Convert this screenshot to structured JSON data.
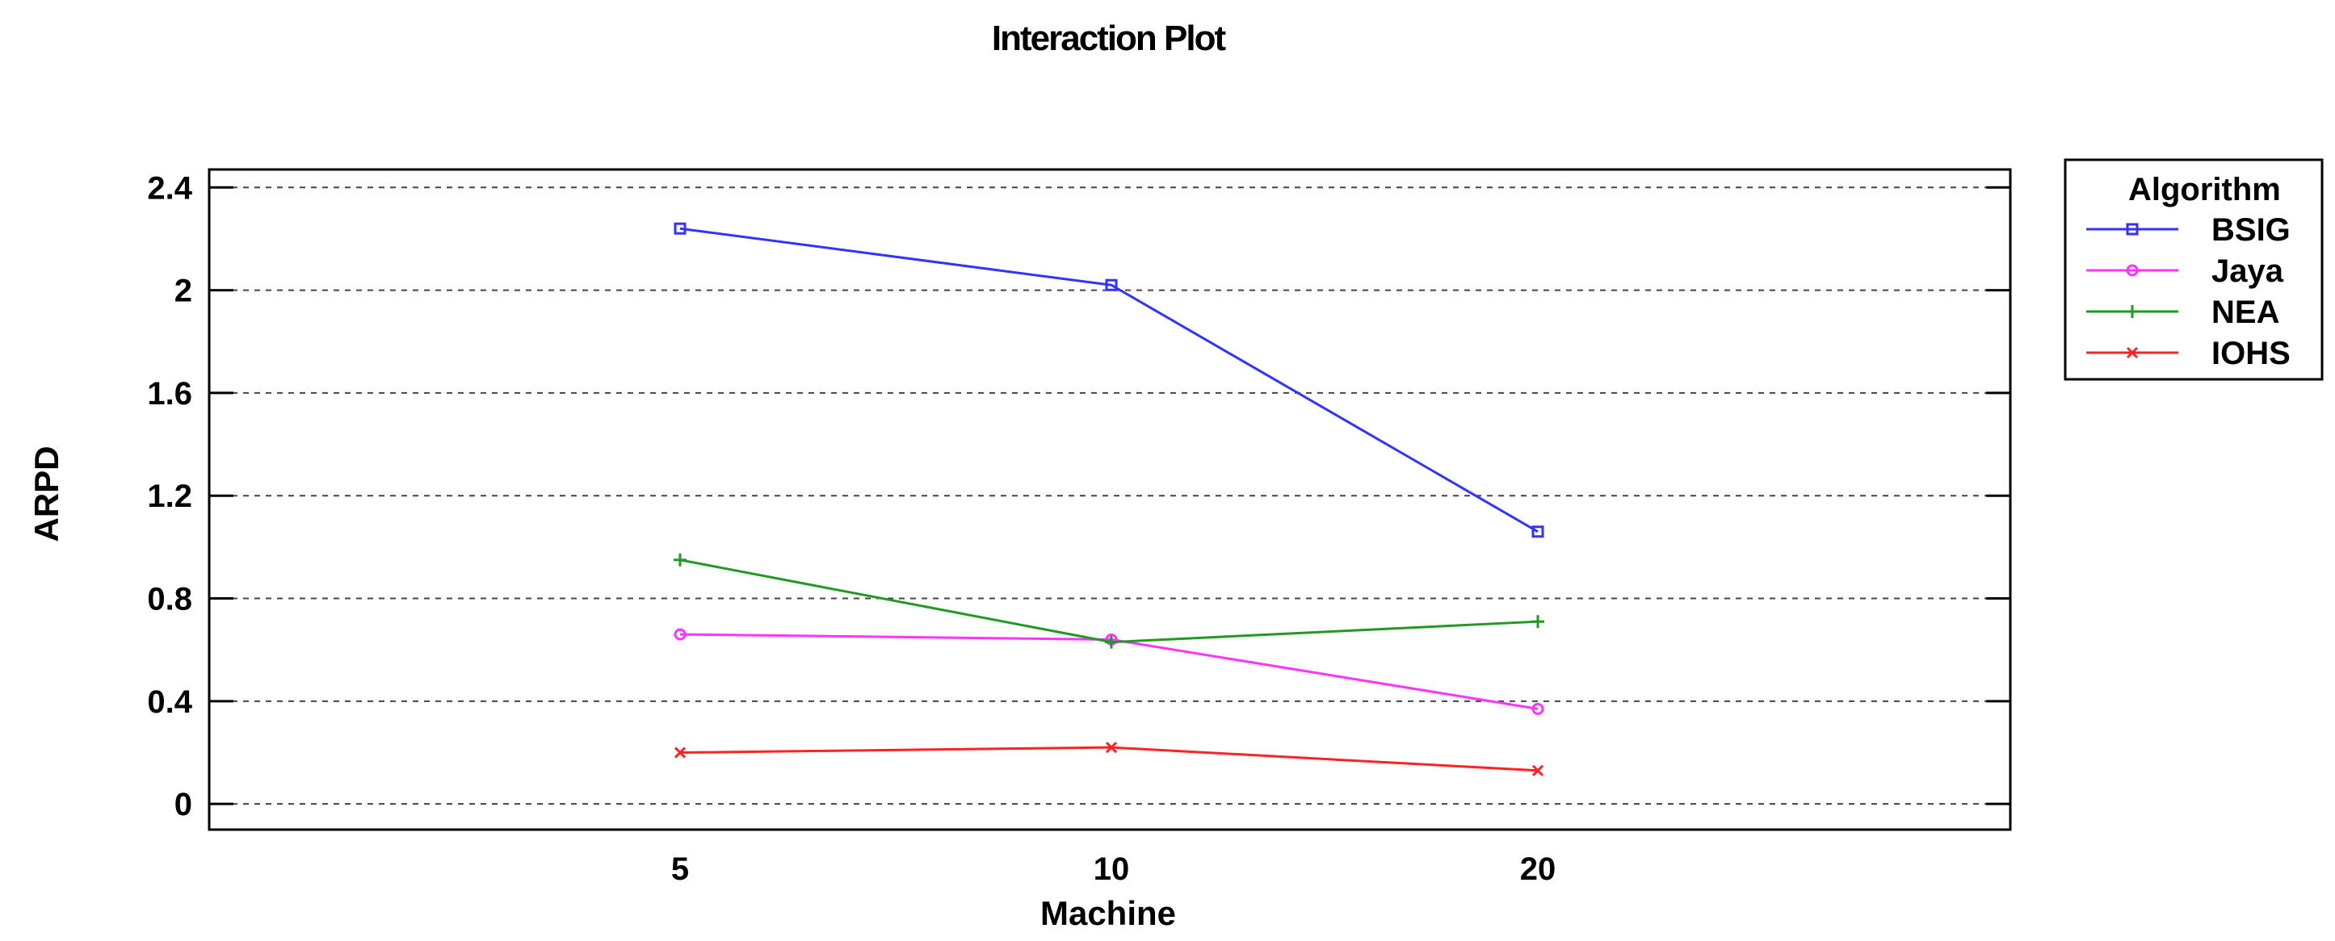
{
  "chart_data": {
    "type": "line",
    "title": "Interaction Plot",
    "xlabel": "Machine",
    "ylabel": "ARPD",
    "categories": [
      "5",
      "10",
      "20"
    ],
    "ylim": [
      -0.1,
      2.47
    ],
    "yticks": [
      0,
      0.4,
      0.8,
      1.2,
      1.6,
      2,
      2.4
    ],
    "grid": "horizontal-dashed",
    "legend": {
      "title": "Algorithm",
      "position": "right-top"
    },
    "series": [
      {
        "name": "BSIG",
        "color": "#3333ff",
        "marker": "square",
        "values": [
          2.24,
          2.02,
          1.06
        ]
      },
      {
        "name": "Jaya",
        "color": "#ff33ff",
        "marker": "circle",
        "values": [
          0.66,
          0.64,
          0.37
        ]
      },
      {
        "name": "NEA",
        "color": "#229922",
        "marker": "plus",
        "values": [
          0.95,
          0.63,
          0.71
        ]
      },
      {
        "name": "IOHS",
        "color": "#ff2222",
        "marker": "x",
        "values": [
          0.2,
          0.22,
          0.13
        ]
      }
    ]
  }
}
